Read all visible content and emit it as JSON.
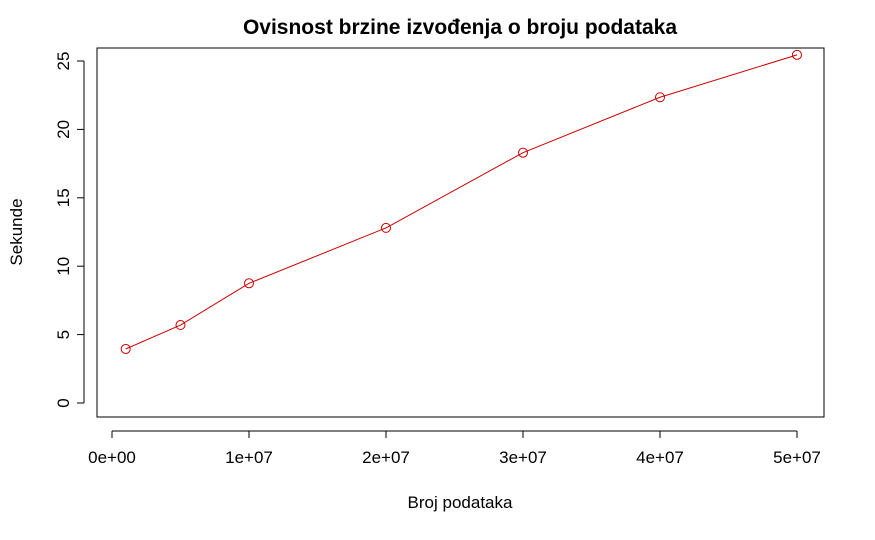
{
  "chart_data": {
    "type": "line",
    "title": "Ovisnost brzine izvođenja o broju podataka",
    "xlabel": "Broj podataka",
    "ylabel": "Sekunde",
    "xlim": [
      0,
      50000000
    ],
    "ylim": [
      0,
      25
    ],
    "x_ticks": [
      0,
      10000000,
      20000000,
      30000000,
      40000000,
      50000000
    ],
    "x_tick_labels": [
      "0e+00",
      "1e+07",
      "2e+07",
      "3e+07",
      "4e+07",
      "5e+07"
    ],
    "y_ticks": [
      0,
      5,
      10,
      15,
      20,
      25
    ],
    "y_tick_labels": [
      "0",
      "5",
      "10",
      "15",
      "20",
      "25"
    ],
    "grid": false,
    "series": [
      {
        "color": "#cc0000",
        "marker": "circle-open",
        "x": [
          1000000,
          5000000,
          10000000,
          20000000,
          30000000,
          40000000,
          50000000
        ],
        "y": [
          3.95,
          5.7,
          8.75,
          12.8,
          18.3,
          22.35,
          25.45
        ]
      }
    ]
  }
}
